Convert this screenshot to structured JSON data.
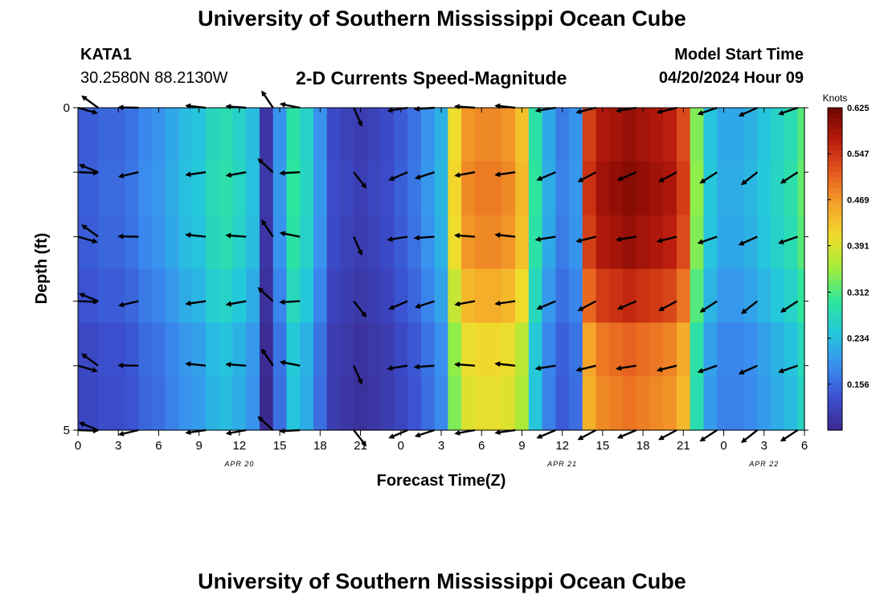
{
  "header": {
    "title": "University of Southern Mississippi Ocean Cube",
    "station_id": "KATA1",
    "coords": "30.2580N  88.2130W",
    "subtitle": "2-D Currents Speed-Magnitude",
    "model_start_label": "Model Start Time",
    "model_start_value": "04/20/2024 Hour 09"
  },
  "footer": {
    "title": "University of Southern Mississippi Ocean Cube"
  },
  "colors": {
    "scale": [
      "#3b2a8f",
      "#3b4fd0",
      "#3a8ef0",
      "#24c7dc",
      "#2ee69c",
      "#9fee3c",
      "#f1dc2c",
      "#f5a32a",
      "#e5581e",
      "#b81a0c",
      "#6e0500"
    ]
  },
  "chart_data": {
    "type": "heatmap",
    "title": "2-D Currents Speed-Magnitude",
    "xlabel": "Forecast Time(Z)",
    "ylabel": "Depth (ft)",
    "x_range": [
      0,
      54
    ],
    "y_range": [
      0,
      5
    ],
    "x_ticks": [
      0,
      3,
      6,
      9,
      12,
      15,
      18,
      21,
      24,
      27,
      30,
      33,
      36,
      39,
      42,
      45,
      48,
      51,
      54
    ],
    "x_tick_labels": [
      "0",
      "3",
      "6",
      "9",
      "12",
      "15",
      "18",
      "21",
      "0",
      "3",
      "6",
      "9",
      "12",
      "15",
      "18",
      "21",
      "0",
      "3",
      "6"
    ],
    "y_tick_labels": [
      "0",
      "5"
    ],
    "date_labels": [
      {
        "x": 12,
        "label": "APR 20"
      },
      {
        "x": 36,
        "label": "APR 21"
      },
      {
        "x": 51,
        "label": "APR 22"
      }
    ],
    "colorbar": {
      "label": "Knots",
      "min": 0.078,
      "max": 0.625,
      "tick_values": [
        0.625,
        0.547,
        0.469,
        0.391,
        0.312,
        0.234,
        0.156
      ]
    },
    "speed_profile": {
      "hours": [
        0,
        1,
        2,
        3,
        4,
        5,
        6,
        7,
        8,
        9,
        10,
        11,
        12,
        13,
        14,
        15,
        16,
        17,
        18,
        19,
        20,
        21,
        22,
        23,
        24,
        25,
        26,
        27,
        28,
        29,
        30,
        31,
        32,
        33,
        34,
        35,
        36,
        37,
        38,
        39,
        40,
        41,
        42,
        43,
        44,
        45,
        46,
        47,
        48,
        49,
        50,
        51,
        52,
        53,
        54
      ],
      "values": [
        0.15,
        0.15,
        0.16,
        0.16,
        0.17,
        0.19,
        0.2,
        0.22,
        0.24,
        0.25,
        0.28,
        0.29,
        0.27,
        0.24,
        0.1,
        0.2,
        0.3,
        0.27,
        0.2,
        0.13,
        0.12,
        0.11,
        0.12,
        0.13,
        0.15,
        0.17,
        0.2,
        0.23,
        0.42,
        0.49,
        0.5,
        0.5,
        0.49,
        0.45,
        0.3,
        0.22,
        0.18,
        0.2,
        0.56,
        0.6,
        0.61,
        0.62,
        0.61,
        0.6,
        0.59,
        0.55,
        0.35,
        0.25,
        0.22,
        0.22,
        0.23,
        0.25,
        0.27,
        0.29,
        0.33
      ]
    },
    "depth_factors": [
      0.96,
      0.98,
      0.96,
      0.9,
      0.82,
      0.8
    ],
    "vector_times": [
      0,
      1.5,
      4.5,
      9.5,
      12.5,
      14.5,
      16.5,
      20.5,
      24.5,
      26.5,
      29.5,
      32.5,
      35.5,
      38.5,
      41.5,
      44.5,
      47.5,
      50.5,
      53.5
    ],
    "vector_directions_deg": [
      -10,
      150,
      185,
      180,
      182,
      130,
      175,
      300,
      195,
      190,
      182,
      180,
      195,
      200,
      195,
      200,
      205,
      210,
      205
    ]
  }
}
